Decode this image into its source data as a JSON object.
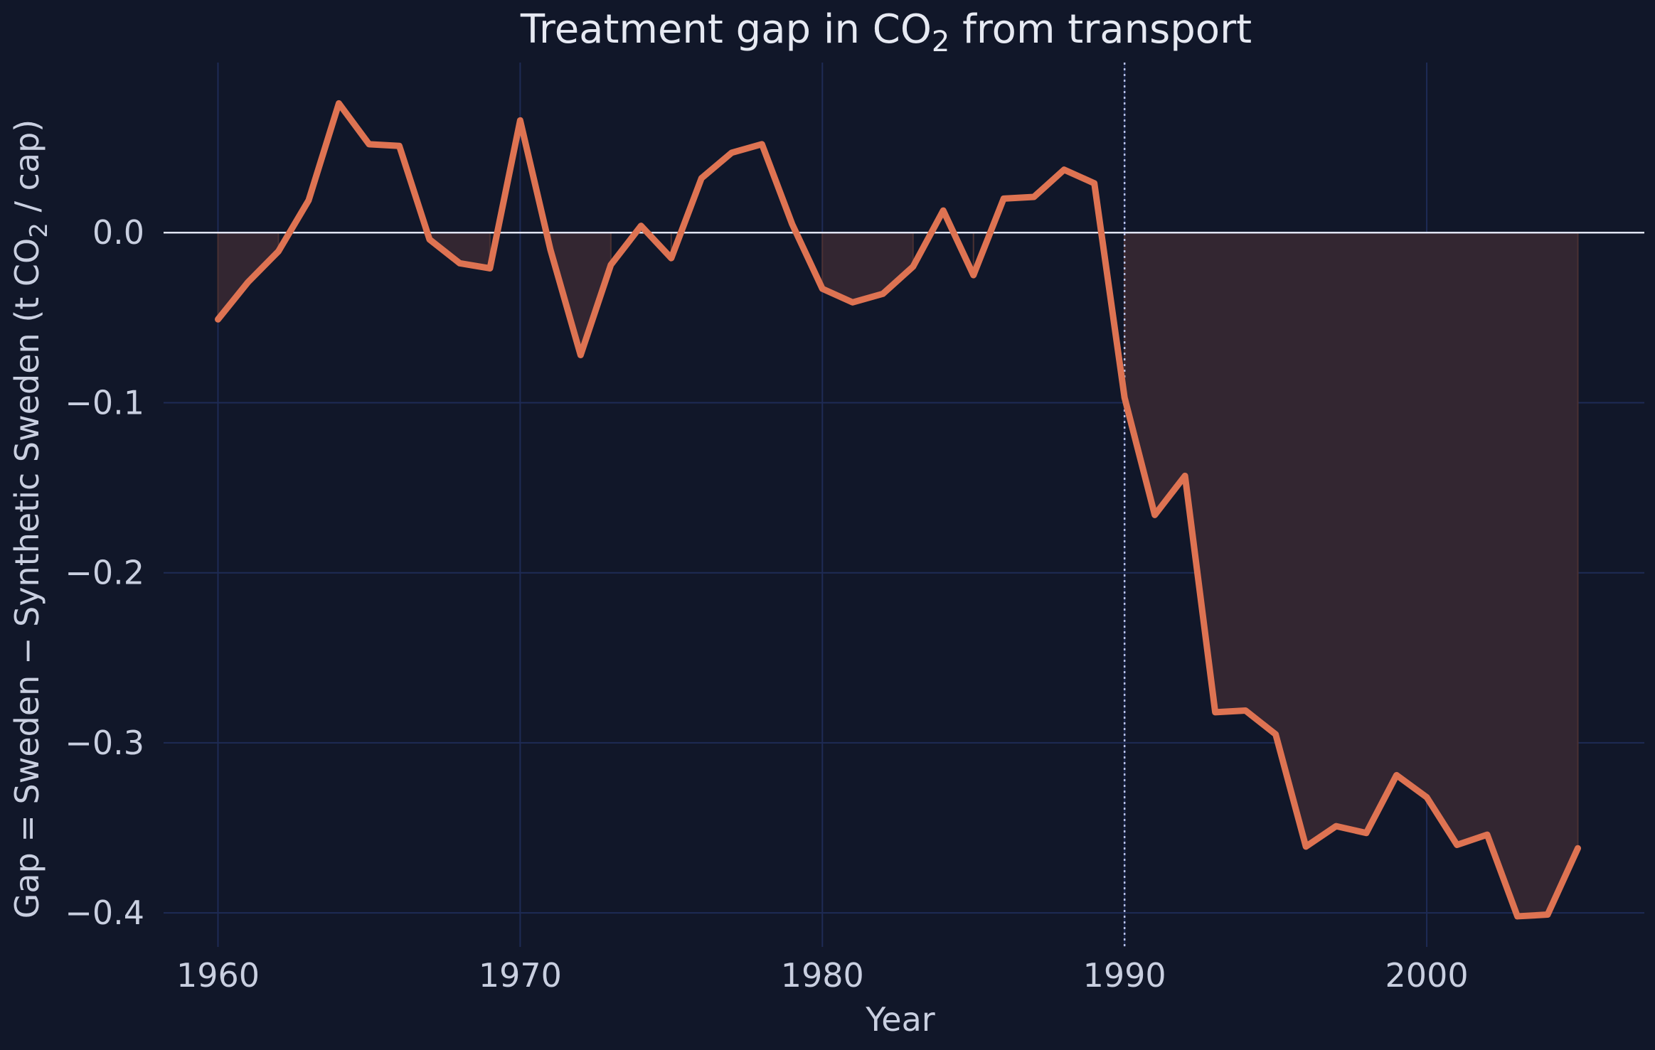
{
  "chart_data": {
    "type": "line",
    "title": "Treatment gap in CO",
    "title_subscript": "2",
    "title_suffix": " from transport",
    "xlabel": "Year",
    "ylabel_parts": [
      "Gap = Sweden − Synthetic Sweden (t CO",
      "2",
      " / cap)"
    ],
    "xlim": [
      1958.2,
      2007.2
    ],
    "ylim": [
      -0.42,
      0.1
    ],
    "xticks": [
      1960,
      1970,
      1980,
      1990,
      2000
    ],
    "xtick_labels": [
      "1960",
      "1970",
      "1980",
      "1990",
      "2000"
    ],
    "yticks": [
      0.0,
      -0.1,
      -0.2,
      -0.3,
      -0.4
    ],
    "ytick_labels": [
      "0.0",
      "−0.1",
      "−0.2",
      "−0.3",
      "−0.4"
    ],
    "grid": true,
    "reference_line_y": 0,
    "treatment_year": 1990,
    "shading": "area between gap and zero",
    "colors": {
      "background": "#111729",
      "line": "#de7352",
      "shade": "#332631",
      "grid": "#1e2b55"
    },
    "series": [
      {
        "x": [
          1960,
          1961,
          1962,
          1963,
          1964,
          1965,
          1966,
          1967,
          1968,
          1969,
          1970,
          1971,
          1972,
          1973,
          1974,
          1975,
          1976,
          1977,
          1978,
          1979,
          1980,
          1981,
          1982,
          1983,
          1984,
          1985,
          1986,
          1987,
          1988,
          1989,
          1990,
          1991,
          1992,
          1993,
          1994,
          1995,
          1996,
          1997,
          1998,
          1999,
          2000,
          2001,
          2002,
          2003,
          2004,
          2005
        ],
        "values": [
          -0.051,
          -0.029,
          -0.011,
          0.019,
          0.076,
          0.052,
          0.051,
          -0.004,
          -0.018,
          -0.021,
          0.066,
          -0.01,
          -0.072,
          -0.019,
          0.004,
          -0.015,
          0.032,
          0.047,
          0.052,
          0.005,
          -0.033,
          -0.041,
          -0.036,
          -0.02,
          0.013,
          -0.025,
          0.02,
          0.021,
          0.037,
          0.029,
          -0.097,
          -0.166,
          -0.143,
          -0.282,
          -0.281,
          -0.295,
          -0.361,
          -0.349,
          -0.353,
          -0.319,
          -0.332,
          -0.36,
          -0.354,
          -0.402,
          -0.401,
          -0.362
        ]
      }
    ]
  }
}
